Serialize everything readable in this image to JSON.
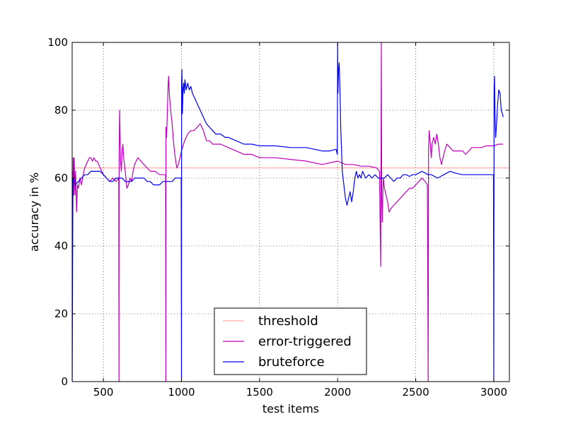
{
  "chart_data": {
    "type": "line",
    "title": "",
    "xlabel": "test items",
    "ylabel": "accuracy in %",
    "xlim": [
      300,
      3100
    ],
    "ylim": [
      0,
      100
    ],
    "x_ticks": [
      500,
      1000,
      1500,
      2000,
      2500,
      3000
    ],
    "y_ticks": [
      0,
      20,
      40,
      60,
      80,
      100
    ],
    "grid": true,
    "legend_position": "bottom-center",
    "series": [
      {
        "name": "threshold",
        "color": "#ffaaaa",
        "points": [
          [
            300,
            63
          ],
          [
            3100,
            63
          ]
        ]
      },
      {
        "name": "error-triggered",
        "color": "#bb00bb",
        "points": [
          [
            300,
            0
          ],
          [
            301,
            62
          ],
          [
            304,
            50
          ],
          [
            307,
            66
          ],
          [
            310,
            55
          ],
          [
            313,
            66
          ],
          [
            318,
            55
          ],
          [
            322,
            62
          ],
          [
            328,
            50
          ],
          [
            334,
            58
          ],
          [
            340,
            57
          ],
          [
            350,
            60
          ],
          [
            360,
            58
          ],
          [
            370,
            61
          ],
          [
            380,
            63
          ],
          [
            390,
            64
          ],
          [
            400,
            65
          ],
          [
            410,
            66
          ],
          [
            420,
            66
          ],
          [
            430,
            65
          ],
          [
            440,
            66
          ],
          [
            450,
            65
          ],
          [
            460,
            65
          ],
          [
            470,
            64
          ],
          [
            480,
            63
          ],
          [
            490,
            62
          ],
          [
            500,
            61
          ],
          [
            520,
            60
          ],
          [
            540,
            59
          ],
          [
            560,
            60
          ],
          [
            580,
            59
          ],
          [
            598,
            60
          ],
          [
            600,
            0
          ],
          [
            601,
            67
          ],
          [
            604,
            80
          ],
          [
            607,
            72
          ],
          [
            610,
            65
          ],
          [
            615,
            62
          ],
          [
            620,
            68
          ],
          [
            625,
            70
          ],
          [
            630,
            66
          ],
          [
            640,
            62
          ],
          [
            650,
            57
          ],
          [
            660,
            58
          ],
          [
            670,
            60
          ],
          [
            680,
            59
          ],
          [
            690,
            62
          ],
          [
            700,
            64
          ],
          [
            710,
            65
          ],
          [
            720,
            66
          ],
          [
            740,
            65
          ],
          [
            760,
            64
          ],
          [
            780,
            63
          ],
          [
            800,
            62
          ],
          [
            830,
            62
          ],
          [
            860,
            61
          ],
          [
            880,
            61
          ],
          [
            898,
            61
          ],
          [
            900,
            0
          ],
          [
            901,
            75
          ],
          [
            905,
            72
          ],
          [
            910,
            80
          ],
          [
            915,
            88
          ],
          [
            918,
            90
          ],
          [
            922,
            85
          ],
          [
            930,
            80
          ],
          [
            940,
            76
          ],
          [
            950,
            70
          ],
          [
            960,
            66
          ],
          [
            970,
            63
          ],
          [
            980,
            64
          ],
          [
            990,
            66
          ],
          [
            1000,
            68
          ],
          [
            1020,
            71
          ],
          [
            1040,
            73
          ],
          [
            1060,
            74
          ],
          [
            1080,
            74
          ],
          [
            1100,
            75
          ],
          [
            1120,
            76
          ],
          [
            1140,
            74
          ],
          [
            1160,
            71
          ],
          [
            1180,
            71
          ],
          [
            1200,
            70
          ],
          [
            1250,
            70
          ],
          [
            1300,
            69
          ],
          [
            1350,
            68
          ],
          [
            1400,
            67
          ],
          [
            1450,
            67
          ],
          [
            1500,
            66
          ],
          [
            1600,
            66
          ],
          [
            1700,
            65.5
          ],
          [
            1800,
            65
          ],
          [
            1900,
            64
          ],
          [
            2000,
            65
          ],
          [
            2050,
            64
          ],
          [
            2100,
            64
          ],
          [
            2150,
            63.5
          ],
          [
            2200,
            63.5
          ],
          [
            2250,
            63
          ],
          [
            2268,
            62
          ],
          [
            2272,
            48
          ],
          [
            2276,
            34
          ],
          [
            2280,
            100
          ],
          [
            2282,
            55
          ],
          [
            2286,
            47
          ],
          [
            2292,
            60
          ],
          [
            2300,
            57
          ],
          [
            2310,
            55
          ],
          [
            2320,
            53
          ],
          [
            2330,
            50
          ],
          [
            2340,
            51
          ],
          [
            2360,
            52
          ],
          [
            2380,
            53
          ],
          [
            2400,
            54
          ],
          [
            2420,
            55
          ],
          [
            2440,
            56
          ],
          [
            2460,
            57
          ],
          [
            2480,
            57
          ],
          [
            2500,
            58
          ],
          [
            2520,
            59
          ],
          [
            2540,
            60
          ],
          [
            2560,
            59
          ],
          [
            2575,
            58
          ],
          [
            2580,
            0
          ],
          [
            2582,
            68
          ],
          [
            2586,
            74
          ],
          [
            2592,
            71
          ],
          [
            2600,
            66
          ],
          [
            2605,
            70
          ],
          [
            2615,
            72
          ],
          [
            2625,
            70
          ],
          [
            2635,
            73
          ],
          [
            2645,
            70
          ],
          [
            2655,
            66
          ],
          [
            2665,
            64
          ],
          [
            2675,
            66
          ],
          [
            2685,
            68
          ],
          [
            2700,
            70
          ],
          [
            2720,
            69
          ],
          [
            2740,
            68
          ],
          [
            2760,
            68
          ],
          [
            2780,
            68
          ],
          [
            2800,
            68
          ],
          [
            2820,
            67
          ],
          [
            2840,
            68
          ],
          [
            2860,
            69
          ],
          [
            2880,
            69
          ],
          [
            2900,
            69
          ],
          [
            2920,
            69
          ],
          [
            2950,
            69.5
          ],
          [
            3000,
            69.5
          ],
          [
            3030,
            70
          ],
          [
            3050,
            70
          ],
          [
            3060,
            70
          ]
        ]
      },
      {
        "name": "bruteforce",
        "color": "#0000ee",
        "points": [
          [
            300,
            0
          ],
          [
            305,
            60
          ],
          [
            320,
            58
          ],
          [
            340,
            59
          ],
          [
            360,
            60
          ],
          [
            380,
            61
          ],
          [
            400,
            61
          ],
          [
            420,
            62
          ],
          [
            440,
            62
          ],
          [
            460,
            62
          ],
          [
            480,
            62
          ],
          [
            500,
            61
          ],
          [
            520,
            60
          ],
          [
            540,
            59
          ],
          [
            560,
            59
          ],
          [
            580,
            60
          ],
          [
            600,
            60
          ],
          [
            620,
            60
          ],
          [
            640,
            59
          ],
          [
            660,
            59
          ],
          [
            680,
            59
          ],
          [
            700,
            60
          ],
          [
            720,
            60
          ],
          [
            740,
            60
          ],
          [
            760,
            60
          ],
          [
            780,
            59
          ],
          [
            800,
            59
          ],
          [
            820,
            58
          ],
          [
            840,
            58
          ],
          [
            860,
            58
          ],
          [
            880,
            59
          ],
          [
            900,
            59
          ],
          [
            920,
            59
          ],
          [
            940,
            59
          ],
          [
            960,
            60
          ],
          [
            980,
            60
          ],
          [
            998,
            60
          ],
          [
            1000,
            0
          ],
          [
            1001,
            88
          ],
          [
            1003,
            92
          ],
          [
            1006,
            79
          ],
          [
            1010,
            86
          ],
          [
            1014,
            88
          ],
          [
            1018,
            85
          ],
          [
            1022,
            89
          ],
          [
            1030,
            86
          ],
          [
            1040,
            88
          ],
          [
            1050,
            86
          ],
          [
            1060,
            87
          ],
          [
            1070,
            85
          ],
          [
            1080,
            84
          ],
          [
            1090,
            83
          ],
          [
            1100,
            82
          ],
          [
            1120,
            80
          ],
          [
            1140,
            78
          ],
          [
            1160,
            76
          ],
          [
            1180,
            75
          ],
          [
            1200,
            74
          ],
          [
            1220,
            73
          ],
          [
            1250,
            73
          ],
          [
            1280,
            72
          ],
          [
            1300,
            72
          ],
          [
            1350,
            71
          ],
          [
            1400,
            70
          ],
          [
            1450,
            70
          ],
          [
            1500,
            69.5
          ],
          [
            1600,
            69.5
          ],
          [
            1700,
            69
          ],
          [
            1800,
            69
          ],
          [
            1900,
            68
          ],
          [
            1950,
            68
          ],
          [
            1990,
            68.5
          ],
          [
            1998,
            67
          ],
          [
            2000,
            100
          ],
          [
            2002,
            85
          ],
          [
            2006,
            92
          ],
          [
            2010,
            94
          ],
          [
            2014,
            88
          ],
          [
            2020,
            75
          ],
          [
            2030,
            62
          ],
          [
            2040,
            58
          ],
          [
            2050,
            54
          ],
          [
            2060,
            52
          ],
          [
            2070,
            54
          ],
          [
            2080,
            56
          ],
          [
            2090,
            53
          ],
          [
            2100,
            56
          ],
          [
            2110,
            60
          ],
          [
            2120,
            62
          ],
          [
            2130,
            60
          ],
          [
            2140,
            61
          ],
          [
            2150,
            60
          ],
          [
            2160,
            62
          ],
          [
            2170,
            61
          ],
          [
            2180,
            60
          ],
          [
            2200,
            61
          ],
          [
            2220,
            60
          ],
          [
            2240,
            61
          ],
          [
            2260,
            60
          ],
          [
            2280,
            60
          ],
          [
            2300,
            60
          ],
          [
            2320,
            61
          ],
          [
            2340,
            60
          ],
          [
            2360,
            59
          ],
          [
            2380,
            60
          ],
          [
            2400,
            60
          ],
          [
            2420,
            61
          ],
          [
            2440,
            61
          ],
          [
            2460,
            60.5
          ],
          [
            2480,
            61
          ],
          [
            2500,
            61
          ],
          [
            2520,
            61.5
          ],
          [
            2540,
            62
          ],
          [
            2560,
            61.5
          ],
          [
            2580,
            61
          ],
          [
            2600,
            61
          ],
          [
            2620,
            60.5
          ],
          [
            2640,
            60
          ],
          [
            2660,
            60.5
          ],
          [
            2680,
            61
          ],
          [
            2700,
            61.5
          ],
          [
            2720,
            62
          ],
          [
            2750,
            61.5
          ],
          [
            2800,
            61
          ],
          [
            2850,
            61
          ],
          [
            2900,
            61
          ],
          [
            2950,
            61
          ],
          [
            2980,
            61
          ],
          [
            2998,
            61
          ],
          [
            3000,
            0
          ],
          [
            3002,
            86
          ],
          [
            3005,
            90
          ],
          [
            3008,
            79
          ],
          [
            3012,
            72
          ],
          [
            3018,
            76
          ],
          [
            3025,
            82
          ],
          [
            3032,
            86
          ],
          [
            3040,
            85
          ],
          [
            3048,
            80
          ],
          [
            3055,
            79
          ],
          [
            3060,
            78
          ]
        ]
      }
    ]
  }
}
